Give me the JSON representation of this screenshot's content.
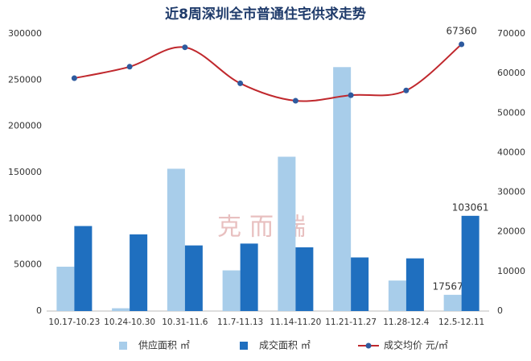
{
  "chart_data": {
    "type": "bar_line",
    "title": "近8周深圳全市普通住宅供求走势",
    "watermark": "克而瑞",
    "categories": [
      "10.17-10.23",
      "10.24-10.30",
      "10.31-11.6",
      "11.7-11.13",
      "11.14-11.20",
      "11.21-11.27",
      "11.28-12.4",
      "12.5-12.11"
    ],
    "series": [
      {
        "name": "供应面积 ㎡",
        "type": "bar",
        "color": "#a8cdea",
        "values": [
          48000,
          3000,
          154000,
          44000,
          167000,
          264000,
          33000,
          17567
        ],
        "value_labels": [
          null,
          null,
          null,
          null,
          null,
          null,
          null,
          "17567"
        ]
      },
      {
        "name": "成交面积 ㎡",
        "type": "bar",
        "color": "#1f6fbf",
        "values": [
          92000,
          83000,
          71000,
          73000,
          69000,
          58000,
          57000,
          103061
        ],
        "value_labels": [
          null,
          null,
          null,
          null,
          null,
          null,
          null,
          "103061"
        ]
      },
      {
        "name": "成交均价 元/㎡",
        "type": "line",
        "axis": "y2",
        "color": "#c0282d",
        "marker_color": "#2e5a9e",
        "values": [
          58800,
          61700,
          66600,
          57500,
          53100,
          54500,
          55700,
          67360
        ],
        "value_labels": [
          null,
          null,
          null,
          null,
          null,
          null,
          null,
          "67360"
        ]
      }
    ],
    "ylim": [
      0,
      300000
    ],
    "yticks": [
      0,
      50000,
      100000,
      150000,
      200000,
      250000,
      300000
    ],
    "y2lim": [
      0,
      70000
    ],
    "y2ticks": [
      0,
      10000,
      20000,
      30000,
      40000,
      50000,
      60000,
      70000
    ],
    "legend": "bottom"
  }
}
